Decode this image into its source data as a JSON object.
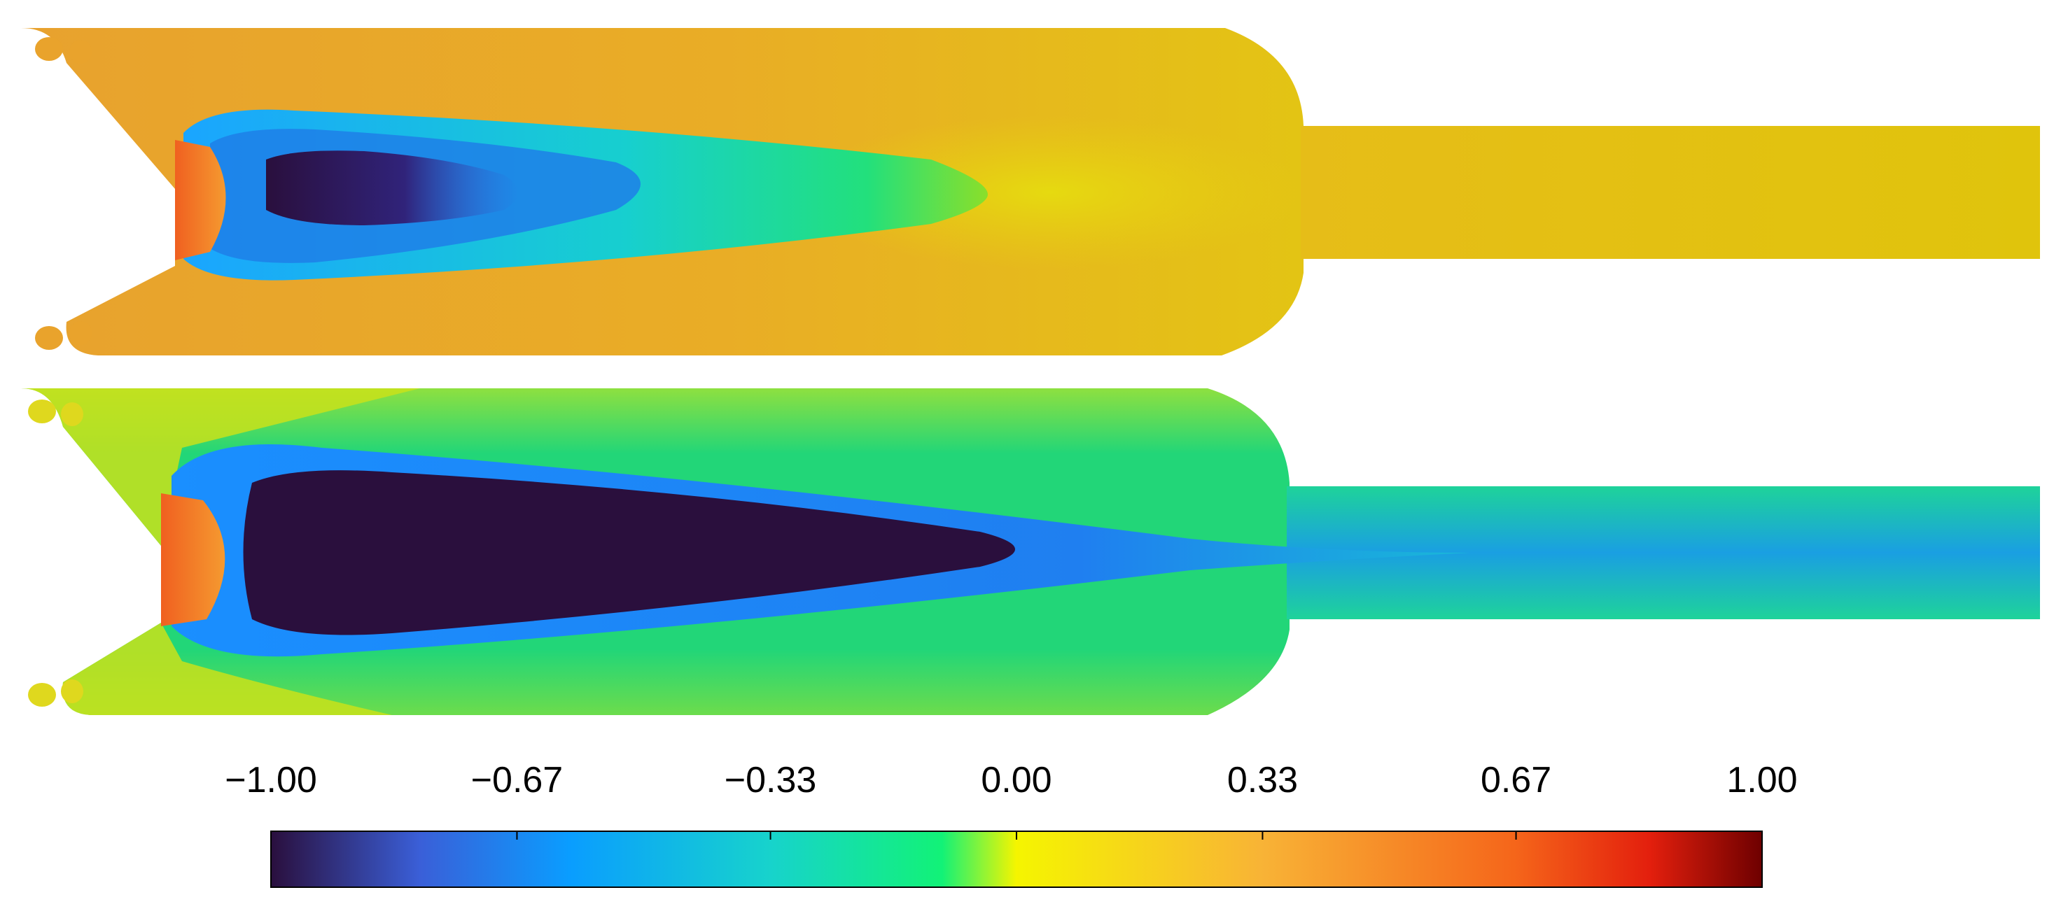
{
  "colorbar": {
    "ticks": [
      {
        "value": -1.0,
        "label": "−1.00"
      },
      {
        "value": -0.67,
        "label": "−0.67"
      },
      {
        "value": -0.33,
        "label": "−0.33"
      },
      {
        "value": 0.0,
        "label": "0.00"
      },
      {
        "value": 0.33,
        "label": "0.33"
      },
      {
        "value": 0.67,
        "label": "0.67"
      },
      {
        "value": 1.0,
        "label": "1.00"
      }
    ],
    "range": [
      -1.0,
      1.0
    ],
    "colormap": [
      {
        "value": -1.0,
        "color": "#2a0f3d"
      },
      {
        "value": -0.8,
        "color": "#3a5fd8"
      },
      {
        "value": -0.6,
        "color": "#0a9dff"
      },
      {
        "value": -0.33,
        "color": "#17d3cc"
      },
      {
        "value": -0.1,
        "color": "#12f277"
      },
      {
        "value": 0.0,
        "color": "#f5f500"
      },
      {
        "value": 0.33,
        "color": "#f8b336"
      },
      {
        "value": 0.67,
        "color": "#f5651a"
      },
      {
        "value": 0.85,
        "color": "#e31f0d"
      },
      {
        "value": 1.0,
        "color": "#6e0000"
      }
    ]
  },
  "panels": {
    "top": {
      "background_color": "#e8a92a",
      "outlet_color": "#e3c414",
      "core_color": "#2a0f3d"
    },
    "bottom": {
      "background_color": "#1ed184",
      "outlet_color": "#19c7b0",
      "core_color": "#2a0f3d"
    }
  }
}
